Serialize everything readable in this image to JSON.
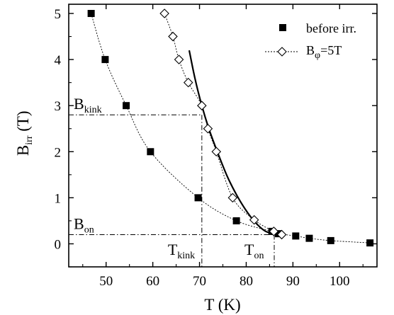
{
  "chart_data": {
    "type": "scatter",
    "xlabel": "T (K)",
    "ylabel": {
      "main": "B",
      "sub": "irr",
      "unit": "(T)"
    },
    "xlim": [
      42,
      108
    ],
    "ylim": [
      -0.5,
      5.2
    ],
    "xticks": [
      50,
      60,
      70,
      80,
      90,
      100
    ],
    "yticks": [
      0,
      1,
      2,
      3,
      4,
      5
    ],
    "grid": false,
    "legend_position": "top-right",
    "series": [
      {
        "name": "before irr.",
        "marker": "filled-square",
        "line": "dotted",
        "points": [
          [
            46.8,
            5.0
          ],
          [
            49.8,
            4.0
          ],
          [
            54.3,
            3.0
          ],
          [
            59.5,
            2.0
          ],
          [
            69.7,
            1.0
          ],
          [
            77.9,
            0.5
          ],
          [
            85.5,
            0.27
          ],
          [
            86.9,
            0.22
          ],
          [
            90.6,
            0.17
          ],
          [
            93.5,
            0.12
          ],
          [
            98.1,
            0.07
          ],
          [
            106.5,
            0.02
          ]
        ]
      },
      {
        "name": "Bφ=5T",
        "legend_main": "B",
        "legend_sub": "φ",
        "legend_rest": "=5T",
        "marker": "open-diamond",
        "line": "dotted",
        "points": [
          [
            62.5,
            5.0
          ],
          [
            64.3,
            4.5
          ],
          [
            65.6,
            4.0
          ],
          [
            67.6,
            3.5
          ],
          [
            70.5,
            3.0
          ],
          [
            71.8,
            2.5
          ],
          [
            73.6,
            2.0
          ],
          [
            77.1,
            1.0
          ],
          [
            81.7,
            0.52
          ],
          [
            85.9,
            0.27
          ],
          [
            87.6,
            0.2
          ]
        ]
      }
    ],
    "fit_curve": {
      "style": "solid",
      "points": [
        [
          67.8,
          4.2
        ],
        [
          69.0,
          3.6
        ],
        [
          70.5,
          3.0
        ],
        [
          72.0,
          2.5
        ],
        [
          74.0,
          1.95
        ],
        [
          76.0,
          1.45
        ],
        [
          78.0,
          1.05
        ],
        [
          80.0,
          0.72
        ],
        [
          82.0,
          0.46
        ],
        [
          84.0,
          0.28
        ],
        [
          86.0,
          0.21
        ]
      ]
    },
    "reference_lines": {
      "B_kink": 2.8,
      "T_kink": 70.5,
      "B_on": 0.2,
      "T_on": 86.0
    },
    "annotations": [
      {
        "id": "b-kink",
        "main": "B",
        "sub": "kink"
      },
      {
        "id": "b-on",
        "main": "B",
        "sub": "on"
      },
      {
        "id": "t-kink",
        "main": "T",
        "sub": "kink"
      },
      {
        "id": "t-on",
        "main": "T",
        "sub": "on"
      }
    ]
  }
}
